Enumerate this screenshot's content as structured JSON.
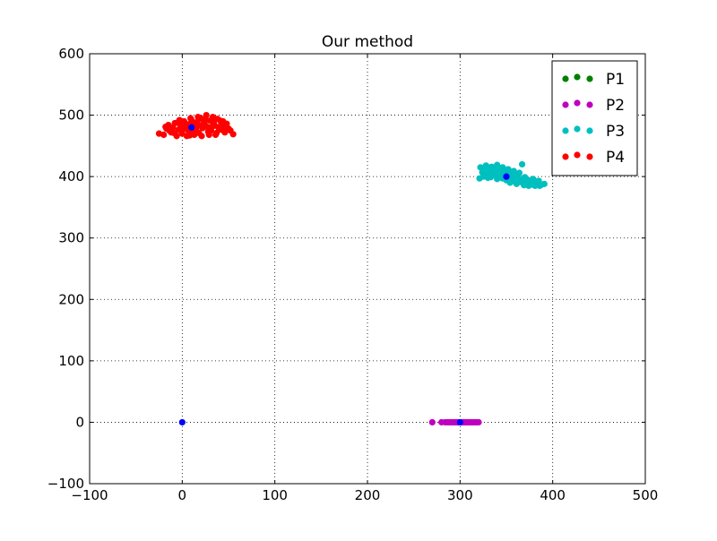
{
  "chart_data": {
    "type": "scatter",
    "title": "Our method",
    "xlabel": "",
    "ylabel": "",
    "xlim": [
      -100,
      500
    ],
    "ylim": [
      -100,
      600
    ],
    "x_ticks": [
      -100,
      0,
      100,
      200,
      300,
      400,
      500
    ],
    "y_ticks": [
      -100,
      0,
      100,
      200,
      300,
      400,
      500,
      600
    ],
    "grid": true,
    "legend_position": "top-right",
    "series": [
      {
        "name": "P1",
        "color": "#008000",
        "points": []
      },
      {
        "name": "P2",
        "color": "#bf00bf",
        "points": [
          [
            270,
            0
          ],
          [
            280,
            0
          ],
          [
            284,
            0
          ],
          [
            288,
            0
          ],
          [
            291,
            0
          ],
          [
            293,
            0
          ],
          [
            295,
            0
          ],
          [
            296,
            0
          ],
          [
            298,
            0
          ],
          [
            299,
            0
          ],
          [
            300,
            0
          ],
          [
            301,
            0
          ],
          [
            302,
            0
          ],
          [
            303,
            0
          ],
          [
            304,
            0
          ],
          [
            305,
            0
          ],
          [
            306,
            0
          ],
          [
            307,
            0
          ],
          [
            308,
            0
          ],
          [
            309,
            0
          ],
          [
            310,
            0
          ],
          [
            311,
            0
          ],
          [
            312,
            0
          ],
          [
            313,
            0
          ],
          [
            314,
            0
          ],
          [
            315,
            0
          ],
          [
            316,
            0
          ],
          [
            317,
            0
          ],
          [
            318,
            0
          ],
          [
            320,
            0
          ],
          [
            286,
            0
          ],
          [
            289,
            0
          ],
          [
            292,
            0
          ],
          [
            297,
            0
          ],
          [
            303.5,
            0
          ]
        ]
      },
      {
        "name": "P3",
        "color": "#00bfbf",
        "points": [
          [
            322,
            415
          ],
          [
            325,
            412
          ],
          [
            328,
            418
          ],
          [
            331,
            409
          ],
          [
            334,
            416
          ],
          [
            337,
            413
          ],
          [
            340,
            419
          ],
          [
            343,
            411
          ],
          [
            346,
            415
          ],
          [
            349,
            408
          ],
          [
            352,
            412
          ],
          [
            355,
            405
          ],
          [
            358,
            409
          ],
          [
            361,
            402
          ],
          [
            364,
            406
          ],
          [
            367,
            420
          ],
          [
            370,
            399
          ],
          [
            373,
            395
          ],
          [
            376,
            392
          ],
          [
            379,
            396
          ],
          [
            382,
            389
          ],
          [
            385,
            393
          ],
          [
            388,
            387
          ],
          [
            391,
            388
          ],
          [
            325,
            400
          ],
          [
            330,
            398
          ],
          [
            335,
            403
          ],
          [
            340,
            396
          ],
          [
            345,
            401
          ],
          [
            350,
            394
          ],
          [
            355,
            398
          ],
          [
            360,
            391
          ],
          [
            365,
            395
          ],
          [
            370,
            388
          ],
          [
            375,
            392
          ],
          [
            380,
            386
          ],
          [
            385,
            389
          ],
          [
            324,
            407
          ],
          [
            332,
            405
          ],
          [
            338,
            407
          ],
          [
            344,
            404
          ],
          [
            348,
            399
          ],
          [
            353,
            402
          ],
          [
            357,
            396
          ],
          [
            362,
            398
          ],
          [
            366,
            391
          ],
          [
            371,
            393
          ],
          [
            377,
            387
          ],
          [
            381,
            385
          ],
          [
            386,
            385
          ],
          [
            328,
            410
          ],
          [
            336,
            409
          ],
          [
            342,
            411
          ],
          [
            347,
            406
          ],
          [
            351,
            405
          ],
          [
            356,
            401
          ],
          [
            359,
            395
          ],
          [
            363,
            394
          ],
          [
            368,
            397
          ],
          [
            372,
            390
          ],
          [
            374,
            385
          ],
          [
            378,
            388
          ],
          [
            383,
            392
          ],
          [
            321,
            397
          ],
          [
            327,
            404
          ],
          [
            333,
            399
          ],
          [
            339,
            401
          ],
          [
            341,
            414
          ],
          [
            346,
            397
          ],
          [
            354,
            390
          ],
          [
            361,
            388
          ],
          [
            369,
            386
          ]
        ]
      },
      {
        "name": "P4",
        "color": "#ff0000",
        "points": [
          [
            -25,
            470
          ],
          [
            -20,
            468
          ],
          [
            -17,
            478
          ],
          [
            -15,
            484
          ],
          [
            -12,
            472
          ],
          [
            -10,
            480
          ],
          [
            -8,
            487
          ],
          [
            -6,
            466
          ],
          [
            -4,
            476
          ],
          [
            -2,
            483
          ],
          [
            0,
            470
          ],
          [
            2,
            490
          ],
          [
            4,
            478
          ],
          [
            6,
            485
          ],
          [
            8,
            467
          ],
          [
            10,
            492
          ],
          [
            12,
            474
          ],
          [
            14,
            482
          ],
          [
            16,
            489
          ],
          [
            18,
            471
          ],
          [
            20,
            495
          ],
          [
            22,
            479
          ],
          [
            24,
            486
          ],
          [
            26,
            500
          ],
          [
            28,
            473
          ],
          [
            30,
            491
          ],
          [
            32,
            481
          ],
          [
            34,
            488
          ],
          [
            36,
            468
          ],
          [
            38,
            494
          ],
          [
            40,
            477
          ],
          [
            42,
            484
          ],
          [
            44,
            490
          ],
          [
            46,
            472
          ],
          [
            48,
            486
          ],
          [
            50,
            478
          ],
          [
            52,
            475
          ],
          [
            55,
            469
          ],
          [
            -14,
            475
          ],
          [
            -9,
            471
          ],
          [
            -5,
            488
          ],
          [
            -1,
            476
          ],
          [
            3,
            482
          ],
          [
            7,
            474
          ],
          [
            11,
            487
          ],
          [
            15,
            476
          ],
          [
            19,
            483
          ],
          [
            23,
            491
          ],
          [
            27,
            481
          ],
          [
            31,
            475
          ],
          [
            35,
            483
          ],
          [
            39,
            480
          ],
          [
            43,
            476
          ],
          [
            47,
            481
          ],
          [
            5,
            466
          ],
          [
            13,
            468
          ],
          [
            21,
            466
          ],
          [
            29,
            468
          ],
          [
            37,
            471
          ],
          [
            9,
            495
          ],
          [
            17,
            497
          ],
          [
            25,
            493
          ],
          [
            33,
            497
          ],
          [
            41,
            491
          ],
          [
            -3,
            492
          ],
          [
            1,
            484
          ],
          [
            45,
            487
          ],
          [
            -18,
            481
          ]
        ]
      },
      {
        "name": "",
        "color": "#0000ff",
        "points": [
          [
            0,
            0
          ],
          [
            300,
            0
          ],
          [
            350,
            400
          ],
          [
            10,
            480
          ]
        ]
      }
    ]
  }
}
